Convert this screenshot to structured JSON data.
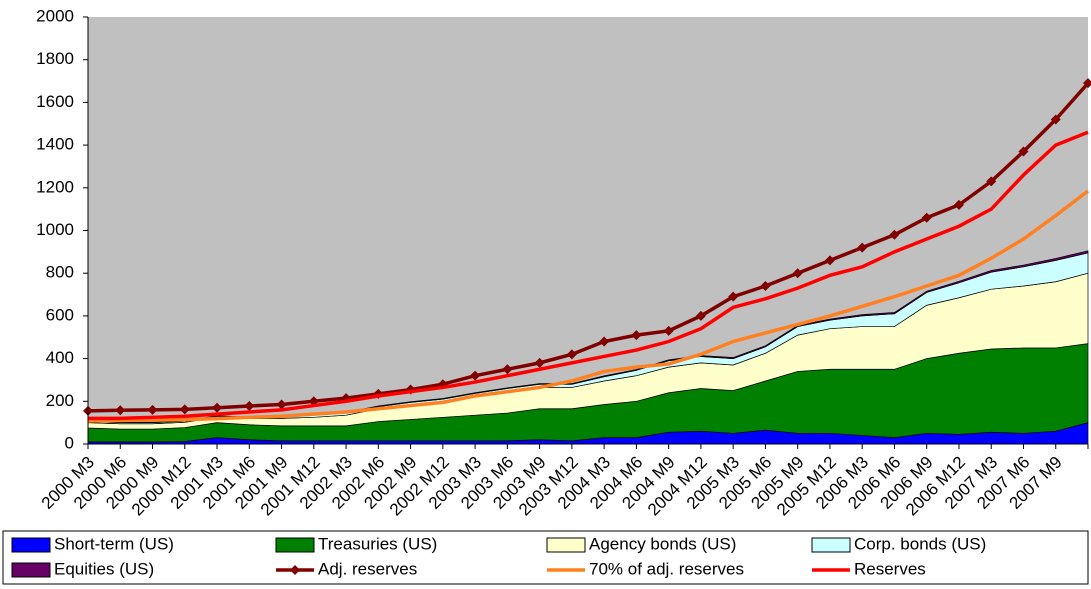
{
  "chart_data": {
    "type": "combo",
    "categories": [
      "2000 M3",
      "2000 M6",
      "2000 M9",
      "2000 M12",
      "2001 M3",
      "2001 M6",
      "2001 M9",
      "2001 M12",
      "2002 M3",
      "2002 M6",
      "2002 M9",
      "2002 M12",
      "2003 M3",
      "2003 M6",
      "2003 M9",
      "2003 M12",
      "2004 M3",
      "2004 M6",
      "2004 M9",
      "2004 M12",
      "2005 M3",
      "2005 M6",
      "2005 M9",
      "2005 M12",
      "2006 M3",
      "2006 M6",
      "2006 M9",
      "2006 M12",
      "2007 M3",
      "2007 M6",
      "2007 M9",
      null
    ],
    "ylim": [
      0,
      2000
    ],
    "yticks": [
      0,
      200,
      400,
      600,
      800,
      1000,
      1200,
      1400,
      1600,
      1800,
      2000
    ],
    "background": "#c0c0c0",
    "series": [
      {
        "name": "Short-term (US)",
        "type": "area",
        "color": "#0000ff",
        "values": [
          10,
          10,
          10,
          12,
          30,
          20,
          15,
          15,
          15,
          15,
          15,
          15,
          15,
          15,
          20,
          15,
          30,
          30,
          55,
          60,
          50,
          65,
          50,
          50,
          40,
          30,
          50,
          45,
          55,
          50,
          60,
          100
        ]
      },
      {
        "name": "Treasuries (US)",
        "type": "area",
        "color": "#008000",
        "values": [
          65,
          60,
          60,
          65,
          70,
          70,
          70,
          70,
          70,
          90,
          100,
          110,
          120,
          130,
          145,
          150,
          155,
          170,
          185,
          200,
          200,
          230,
          290,
          300,
          310,
          320,
          350,
          380,
          390,
          400,
          390,
          370
        ]
      },
      {
        "name": "Agency bonds (US)",
        "type": "area",
        "color": "#ffffcc",
        "values": [
          25,
          25,
          25,
          25,
          25,
          30,
          35,
          40,
          50,
          60,
          70,
          75,
          90,
          100,
          100,
          100,
          110,
          120,
          120,
          120,
          120,
          130,
          170,
          190,
          200,
          200,
          250,
          260,
          280,
          290,
          310,
          330
        ]
      },
      {
        "name": "Corp. bonds (US)",
        "type": "area",
        "color": "#ccffff",
        "values": [
          5,
          5,
          5,
          5,
          5,
          5,
          8,
          10,
          10,
          10,
          10,
          10,
          12,
          15,
          15,
          15,
          20,
          25,
          30,
          30,
          30,
          30,
          40,
          40,
          50,
          60,
          60,
          70,
          80,
          90,
          100,
          95
        ]
      },
      {
        "name": "Equities (US)",
        "type": "area",
        "color": "#660066",
        "values": [
          2,
          2,
          2,
          2,
          2,
          2,
          2,
          2,
          3,
          3,
          3,
          3,
          3,
          3,
          3,
          3,
          4,
          4,
          4,
          4,
          5,
          5,
          5,
          5,
          6,
          6,
          6,
          7,
          8,
          8,
          9,
          10
        ]
      },
      {
        "name": "Adj. reserves",
        "type": "line",
        "color": "#800000",
        "marker": "diamond",
        "values": [
          155,
          158,
          160,
          162,
          170,
          178,
          185,
          200,
          215,
          235,
          255,
          280,
          320,
          350,
          380,
          420,
          480,
          510,
          530,
          600,
          690,
          740,
          800,
          860,
          920,
          980,
          1060,
          1120,
          1230,
          1370,
          1520,
          1690
        ]
      },
      {
        "name": "70% of adj. reserves",
        "type": "line",
        "color": "#ff8020",
        "values": [
          108,
          110,
          112,
          114,
          119,
          125,
          130,
          140,
          150,
          165,
          180,
          195,
          225,
          245,
          265,
          295,
          340,
          360,
          375,
          420,
          480,
          520,
          560,
          600,
          645,
          690,
          740,
          790,
          870,
          960,
          1070,
          1185
        ]
      },
      {
        "name": "Reserves",
        "type": "line",
        "color": "#ff0000",
        "values": [
          120,
          120,
          125,
          130,
          140,
          150,
          160,
          180,
          200,
          225,
          245,
          265,
          290,
          320,
          350,
          380,
          410,
          440,
          480,
          540,
          640,
          680,
          730,
          790,
          830,
          900,
          960,
          1020,
          1100,
          1260,
          1400,
          1460
        ]
      }
    ]
  }
}
